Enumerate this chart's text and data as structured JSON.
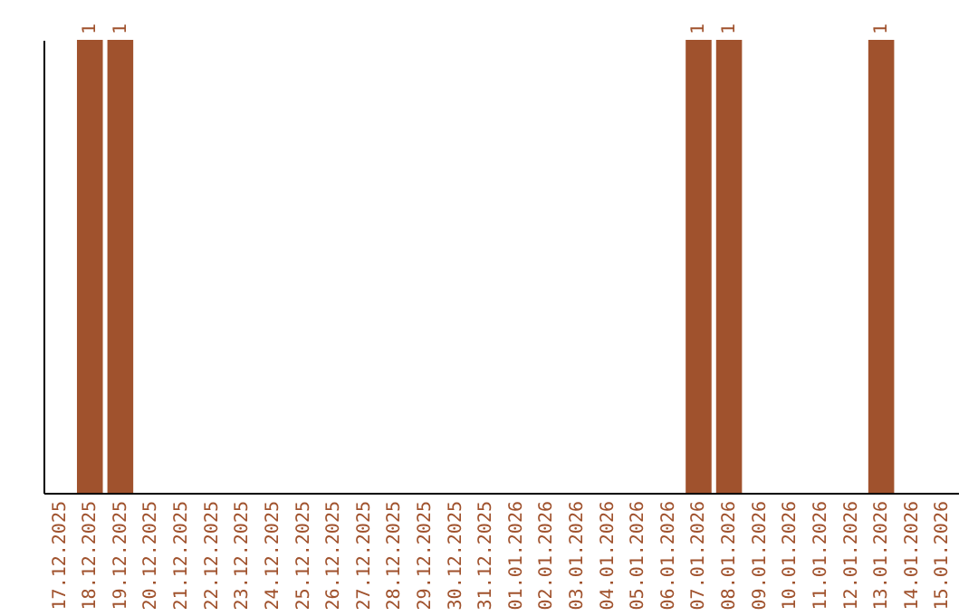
{
  "chart_data": {
    "type": "bar",
    "categories": [
      "17.12.2025",
      "18.12.2025",
      "19.12.2025",
      "20.12.2025",
      "21.12.2025",
      "22.12.2025",
      "23.12.2025",
      "24.12.2025",
      "25.12.2025",
      "26.12.2025",
      "27.12.2025",
      "28.12.2025",
      "29.12.2025",
      "30.12.2025",
      "31.12.2025",
      "01.01.2026",
      "02.01.2026",
      "03.01.2026",
      "04.01.2026",
      "05.01.2026",
      "06.01.2026",
      "07.01.2026",
      "08.01.2026",
      "09.01.2026",
      "10.01.2026",
      "11.01.2026",
      "12.01.2026",
      "13.01.2026",
      "14.01.2026",
      "15.01.2026"
    ],
    "values": [
      0,
      1,
      1,
      0,
      0,
      0,
      0,
      0,
      0,
      0,
      0,
      0,
      0,
      0,
      0,
      0,
      0,
      0,
      0,
      0,
      0,
      1,
      1,
      0,
      0,
      0,
      0,
      1,
      0,
      0
    ],
    "value_labels": [
      null,
      "1",
      "1",
      null,
      null,
      null,
      null,
      null,
      null,
      null,
      null,
      null,
      null,
      null,
      null,
      null,
      null,
      null,
      null,
      null,
      null,
      "1",
      "1",
      null,
      null,
      null,
      null,
      "1",
      null,
      null
    ],
    "color": "#a0522d",
    "ylim": [
      0,
      1
    ],
    "tick_labels": "x",
    "grid": false
  }
}
